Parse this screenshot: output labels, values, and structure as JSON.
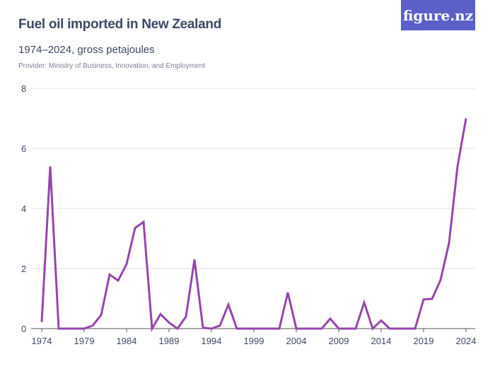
{
  "header": {
    "title": "Fuel oil imported in New Zealand",
    "subtitle": "1974–2024, gross petajoules",
    "provider": "Provider: Ministry of Business, Innovation, and Employment",
    "logo": "figure.nz"
  },
  "chart_data": {
    "type": "line",
    "title": "Fuel oil imported in New Zealand",
    "subtitle": "1974–2024, gross petajoules",
    "xlabel": "",
    "ylabel": "",
    "x": [
      1974,
      1975,
      1976,
      1977,
      1978,
      1979,
      1980,
      1981,
      1982,
      1983,
      1984,
      1985,
      1986,
      1987,
      1988,
      1989,
      1990,
      1991,
      1992,
      1993,
      1994,
      1995,
      1996,
      1997,
      1998,
      1999,
      2000,
      2001,
      2002,
      2003,
      2004,
      2005,
      2006,
      2007,
      2008,
      2009,
      2010,
      2011,
      2012,
      2013,
      2014,
      2015,
      2016,
      2017,
      2018,
      2019,
      2020,
      2021,
      2022,
      2023,
      2024
    ],
    "values": [
      0.22,
      5.4,
      0,
      0,
      0,
      0,
      0.1,
      0.45,
      1.8,
      1.6,
      2.15,
      3.35,
      3.55,
      0,
      0.48,
      0.2,
      0,
      0.4,
      2.3,
      0.03,
      0,
      0.1,
      0.8,
      0,
      0,
      0,
      0,
      0,
      0,
      1.2,
      0,
      0,
      0,
      0,
      0.33,
      0,
      0,
      0,
      0.87,
      0,
      0.27,
      0,
      0,
      0,
      0,
      0.97,
      0.99,
      1.62,
      2.85,
      5.4,
      7.0
    ],
    "xticks": [
      "1974",
      "1979",
      "1984",
      "1989",
      "1994",
      "1999",
      "2004",
      "2009",
      "2014",
      "2019",
      "2024"
    ],
    "yticks": [
      "0",
      "2",
      "4",
      "6",
      "8"
    ],
    "ylim": [
      0,
      8
    ],
    "xlim": [
      1974,
      2024
    ],
    "grid": true,
    "color": "#9446ad"
  }
}
